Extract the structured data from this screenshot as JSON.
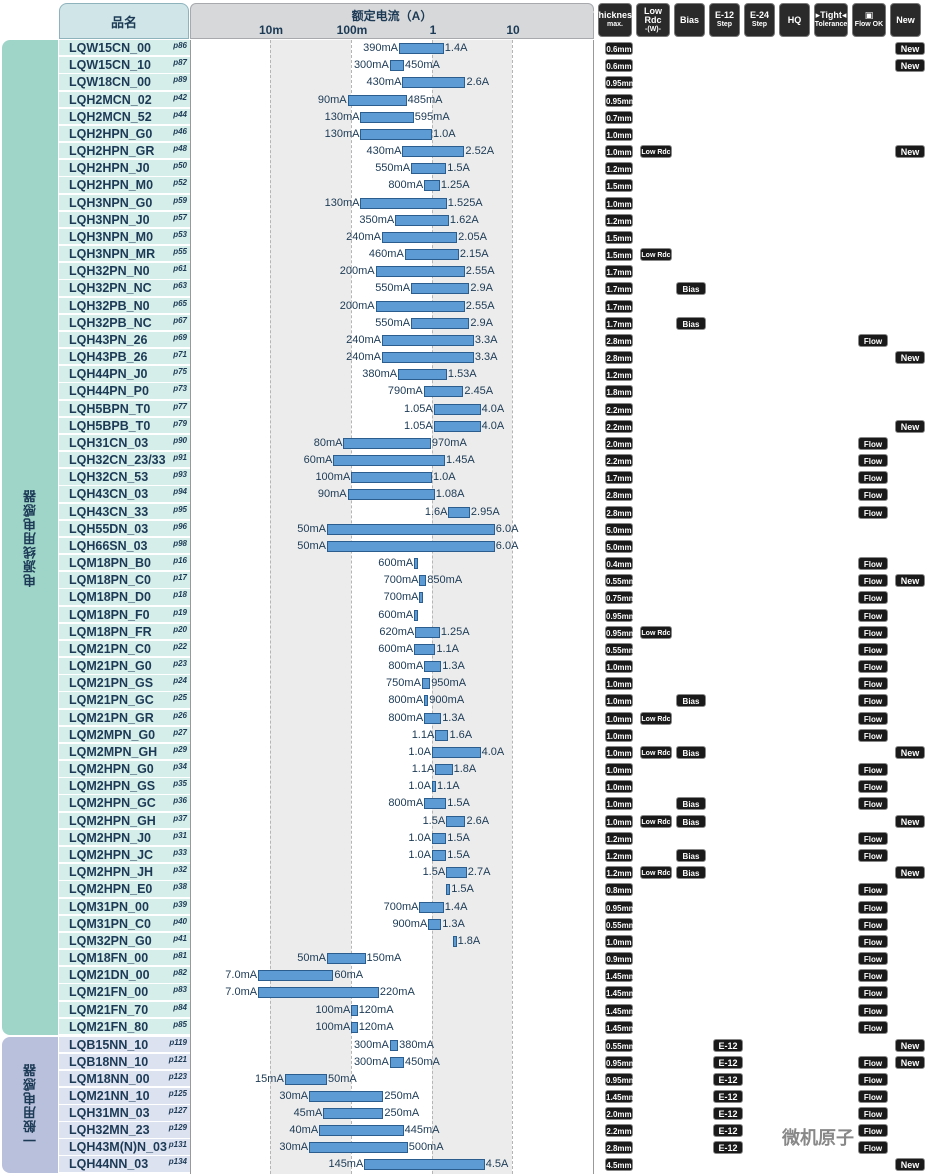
{
  "header": {
    "name_col": "品名",
    "current_title": "额定电流（A）",
    "ticks": [
      "10m",
      "100m",
      "1",
      "10"
    ],
    "icons": [
      {
        "name": "thickness-max-icon",
        "l1": "Thickness",
        "l2": "max."
      },
      {
        "name": "low-rdc-icon",
        "l1": "Low Rdc",
        "l2": "-(W)-"
      },
      {
        "name": "bias-icon",
        "l1": "Bias",
        "l2": ""
      },
      {
        "name": "e12-step-icon",
        "l1": "E-12",
        "l2": "Step"
      },
      {
        "name": "e24-step-icon",
        "l1": "E-24",
        "l2": "Step"
      },
      {
        "name": "high-q-icon",
        "l1": "HQ",
        "l2": ""
      },
      {
        "name": "tight-tolerance-icon",
        "l1": "▸Tight◂",
        "l2": "Tolerance"
      },
      {
        "name": "flow-ok-icon",
        "l1": "▣",
        "l2": "Flow OK"
      },
      {
        "name": "new-icon",
        "l1": "New",
        "l2": ""
      }
    ]
  },
  "groups": [
    {
      "label": "电源线用电感器"
    },
    {
      "label": "一般用电感器"
    }
  ],
  "badges": {
    "low_rdc": "Low Rdc",
    "bias": "Bias",
    "e12": "E-12",
    "flow": "Flow",
    "new": "New"
  },
  "rows": [
    {
      "name": "LQW15CN_00",
      "page": "p86",
      "lo": 0.39,
      "hi": 1.4,
      "lo_label": "390mA",
      "hi_label": "1.4A",
      "thick": "0.6",
      "new": true
    },
    {
      "name": "LQW15CN_10",
      "page": "p87",
      "lo": 0.3,
      "hi": 0.45,
      "lo_label": "300mA",
      "hi_label": "450mA",
      "thick": "0.6",
      "new": true
    },
    {
      "name": "LQW18CN_00",
      "page": "p89",
      "lo": 0.43,
      "hi": 2.6,
      "lo_label": "430mA",
      "hi_label": "2.6A",
      "thick": "0.95"
    },
    {
      "name": "LQH2MCN_02",
      "page": "p42",
      "lo": 0.09,
      "hi": 0.485,
      "lo_label": "90mA",
      "hi_label": "485mA",
      "thick": "0.95"
    },
    {
      "name": "LQH2MCN_52",
      "page": "p44",
      "lo": 0.13,
      "hi": 0.595,
      "lo_label": "130mA",
      "hi_label": "595mA",
      "thick": "0.7"
    },
    {
      "name": "LQH2HPN_G0",
      "page": "p46",
      "lo": 0.13,
      "hi": 1.0,
      "lo_label": "130mA",
      "hi_label": "1.0A",
      "thick": "1.0"
    },
    {
      "name": "LQH2HPN_GR",
      "page": "p48",
      "lo": 0.43,
      "hi": 2.52,
      "lo_label": "430mA",
      "hi_label": "2.52A",
      "thick": "1.0",
      "lowrdc": true,
      "new": true
    },
    {
      "name": "LQH2HPN_J0",
      "page": "p50",
      "lo": 0.55,
      "hi": 1.5,
      "lo_label": "550mA",
      "hi_label": "1.5A",
      "thick": "1.2"
    },
    {
      "name": "LQH2HPN_M0",
      "page": "p52",
      "lo": 0.8,
      "hi": 1.25,
      "lo_label": "800mA",
      "hi_label": "1.25A",
      "thick": "1.5"
    },
    {
      "name": "LQH3NPN_G0",
      "page": "p59",
      "lo": 0.13,
      "hi": 1.525,
      "lo_label": "130mA",
      "hi_label": "1.525A",
      "thick": "1.0"
    },
    {
      "name": "LQH3NPN_J0",
      "page": "p57",
      "lo": 0.35,
      "hi": 1.62,
      "lo_label": "350mA",
      "hi_label": "1.62A",
      "thick": "1.2"
    },
    {
      "name": "LQH3NPN_M0",
      "page": "p53",
      "lo": 0.24,
      "hi": 2.05,
      "lo_label": "240mA",
      "hi_label": "2.05A",
      "thick": "1.5"
    },
    {
      "name": "LQH3NPN_MR",
      "page": "p55",
      "lo": 0.46,
      "hi": 2.15,
      "lo_label": "460mA",
      "hi_label": "2.15A",
      "thick": "1.5",
      "lowrdc": true
    },
    {
      "name": "LQH32PN_N0",
      "page": "p61",
      "lo": 0.2,
      "hi": 2.55,
      "lo_label": "200mA",
      "hi_label": "2.55A",
      "thick": "1.7"
    },
    {
      "name": "LQH32PN_NC",
      "page": "p63",
      "lo": 0.55,
      "hi": 2.9,
      "lo_label": "550mA",
      "hi_label": "2.9A",
      "thick": "1.7",
      "bias": true
    },
    {
      "name": "LQH32PB_N0",
      "page": "p65",
      "lo": 0.2,
      "hi": 2.55,
      "lo_label": "200mA",
      "hi_label": "2.55A",
      "thick": "1.7"
    },
    {
      "name": "LQH32PB_NC",
      "page": "p67",
      "lo": 0.55,
      "hi": 2.9,
      "lo_label": "550mA",
      "hi_label": "2.9A",
      "thick": "1.7",
      "bias": true
    },
    {
      "name": "LQH43PN_26",
      "page": "p69",
      "lo": 0.24,
      "hi": 3.3,
      "lo_label": "240mA",
      "hi_label": "3.3A",
      "thick": "2.8",
      "flow": true
    },
    {
      "name": "LQH43PB_26",
      "page": "p71",
      "lo": 0.24,
      "hi": 3.3,
      "lo_label": "240mA",
      "hi_label": "3.3A",
      "thick": "2.8",
      "new": true
    },
    {
      "name": "LQH44PN_J0",
      "page": "p75",
      "lo": 0.38,
      "hi": 1.53,
      "lo_label": "380mA",
      "hi_label": "1.53A",
      "thick": "1.2"
    },
    {
      "name": "LQH44PN_P0",
      "page": "p73",
      "lo": 0.79,
      "hi": 2.45,
      "lo_label": "790mA",
      "hi_label": "2.45A",
      "thick": "1.8"
    },
    {
      "name": "LQH5BPN_T0",
      "page": "p77",
      "lo": 1.05,
      "hi": 4.0,
      "lo_label": "1.05A",
      "hi_label": "4.0A",
      "thick": "2.2"
    },
    {
      "name": "LQH5BPB_T0",
      "page": "p79",
      "lo": 1.05,
      "hi": 4.0,
      "lo_label": "1.05A",
      "hi_label": "4.0A",
      "thick": "2.2",
      "new": true
    },
    {
      "name": "LQH31CN_03",
      "page": "p90",
      "lo": 0.08,
      "hi": 0.97,
      "lo_label": "80mA",
      "hi_label": "970mA",
      "thick": "2.0",
      "flow": true
    },
    {
      "name": "LQH32CN_23/33",
      "page": "p91",
      "lo": 0.06,
      "hi": 1.45,
      "lo_label": "60mA",
      "hi_label": "1.45A",
      "thick": "2.2",
      "flow": true
    },
    {
      "name": "LQH32CN_53",
      "page": "p93",
      "lo": 0.1,
      "hi": 1.0,
      "lo_label": "100mA",
      "hi_label": "1.0A",
      "thick": "1.7",
      "flow": true
    },
    {
      "name": "LQH43CN_03",
      "page": "p94",
      "lo": 0.09,
      "hi": 1.08,
      "lo_label": "90mA",
      "hi_label": "1.08A",
      "thick": "2.8",
      "flow": true
    },
    {
      "name": "LQH43CN_33",
      "page": "p95",
      "lo": 1.6,
      "hi": 2.95,
      "lo_label": "1.6A",
      "hi_label": "2.95A",
      "thick": "2.8",
      "flow": true
    },
    {
      "name": "LQH55DN_03",
      "page": "p96",
      "lo": 0.05,
      "hi": 6.0,
      "lo_label": "50mA",
      "hi_label": "6.0A",
      "thick": "5.0"
    },
    {
      "name": "LQH66SN_03",
      "page": "p98",
      "lo": 0.05,
      "hi": 6.0,
      "lo_label": "50mA",
      "hi_label": "6.0A",
      "thick": "5.0"
    },
    {
      "name": "LQM18PN_B0",
      "page": "p16",
      "lo": 0.6,
      "hi": 0.6,
      "lo_label": "600mA",
      "hi_label": "",
      "thick": "0.4",
      "flow": true
    },
    {
      "name": "LQM18PN_C0",
      "page": "p17",
      "lo": 0.7,
      "hi": 0.85,
      "lo_label": "700mA",
      "hi_label": "850mA",
      "thick": "0.55",
      "flow": true,
      "new": true
    },
    {
      "name": "LQM18PN_D0",
      "page": "p18",
      "lo": 0.7,
      "hi": 0.7,
      "lo_label": "700mA",
      "hi_label": "",
      "thick": "0.75",
      "flow": true
    },
    {
      "name": "LQM18PN_F0",
      "page": "p19",
      "lo": 0.6,
      "hi": 0.6,
      "lo_label": "600mA",
      "hi_label": "",
      "thick": "0.95",
      "flow": true
    },
    {
      "name": "LQM18PN_FR",
      "page": "p20",
      "lo": 0.62,
      "hi": 1.25,
      "lo_label": "620mA",
      "hi_label": "1.25A",
      "thick": "0.95",
      "lowrdc": true,
      "flow": true
    },
    {
      "name": "LQM21PN_C0",
      "page": "p22",
      "lo": 0.6,
      "hi": 1.1,
      "lo_label": "600mA",
      "hi_label": "1.1A",
      "thick": "0.55",
      "flow": true
    },
    {
      "name": "LQM21PN_G0",
      "page": "p23",
      "lo": 0.8,
      "hi": 1.3,
      "lo_label": "800mA",
      "hi_label": "1.3A",
      "thick": "1.0",
      "flow": true
    },
    {
      "name": "LQM21PN_GS",
      "page": "p24",
      "lo": 0.75,
      "hi": 0.95,
      "lo_label": "750mA",
      "hi_label": "950mA",
      "thick": "1.0",
      "flow": true
    },
    {
      "name": "LQM21PN_GC",
      "page": "p25",
      "lo": 0.8,
      "hi": 0.9,
      "lo_label": "800mA",
      "hi_label": "900mA",
      "thick": "1.0",
      "bias": true,
      "flow": true
    },
    {
      "name": "LQM21PN_GR",
      "page": "p26",
      "lo": 0.8,
      "hi": 1.3,
      "lo_label": "800mA",
      "hi_label": "1.3A",
      "thick": "1.0",
      "lowrdc": true,
      "flow": true
    },
    {
      "name": "LQM2MPN_G0",
      "page": "p27",
      "lo": 1.1,
      "hi": 1.6,
      "lo_label": "1.1A",
      "hi_label": "1.6A",
      "thick": "1.0",
      "flow": true
    },
    {
      "name": "LQM2MPN_GH",
      "page": "p29",
      "lo": 1.0,
      "hi": 4.0,
      "lo_label": "1.0A",
      "hi_label": "4.0A",
      "thick": "1.0",
      "lowrdc": true,
      "bias": true,
      "new": true
    },
    {
      "name": "LQM2HPN_G0",
      "page": "p34",
      "lo": 1.1,
      "hi": 1.8,
      "lo_label": "1.1A",
      "hi_label": "1.8A",
      "thick": "1.0",
      "flow": true
    },
    {
      "name": "LQM2HPN_GS",
      "page": "p35",
      "lo": 1.0,
      "hi": 1.1,
      "lo_label": "1.0A",
      "hi_label": "1.1A",
      "thick": "1.0",
      "flow": true
    },
    {
      "name": "LQM2HPN_GC",
      "page": "p36",
      "lo": 0.8,
      "hi": 1.5,
      "lo_label": "800mA",
      "hi_label": "1.5A",
      "thick": "1.0",
      "bias": true,
      "flow": true
    },
    {
      "name": "LQM2HPN_GH",
      "page": "p37",
      "lo": 1.5,
      "hi": 2.6,
      "lo_label": "1.5A",
      "hi_label": "2.6A",
      "thick": "1.0",
      "lowrdc": true,
      "bias": true,
      "new": true
    },
    {
      "name": "LQM2HPN_J0",
      "page": "p31",
      "lo": 1.0,
      "hi": 1.5,
      "lo_label": "1.0A",
      "hi_label": "1.5A",
      "thick": "1.2",
      "flow": true
    },
    {
      "name": "LQM2HPN_JC",
      "page": "p33",
      "lo": 1.0,
      "hi": 1.5,
      "lo_label": "1.0A",
      "hi_label": "1.5A",
      "thick": "1.2",
      "bias": true,
      "flow": true
    },
    {
      "name": "LQM2HPN_JH",
      "page": "p32",
      "lo": 1.5,
      "hi": 2.7,
      "lo_label": "1.5A",
      "hi_label": "2.7A",
      "thick": "1.2",
      "lowrdc": true,
      "bias": true,
      "new": true
    },
    {
      "name": "LQM2HPN_E0",
      "page": "p38",
      "lo": 1.5,
      "hi": 1.5,
      "lo_label": "",
      "hi_label": "1.5A",
      "thick": "0.8",
      "flow": true
    },
    {
      "name": "LQM31PN_00",
      "page": "p39",
      "lo": 0.7,
      "hi": 1.4,
      "lo_label": "700mA",
      "hi_label": "1.4A",
      "thick": "0.95",
      "flow": true
    },
    {
      "name": "LQM31PN_C0",
      "page": "p40",
      "lo": 0.9,
      "hi": 1.3,
      "lo_label": "900mA",
      "hi_label": "1.3A",
      "thick": "0.55",
      "flow": true
    },
    {
      "name": "LQM32PN_G0",
      "page": "p41",
      "lo": 1.8,
      "hi": 1.8,
      "lo_label": "",
      "hi_label": "1.8A",
      "thick": "1.0",
      "flow": true
    },
    {
      "name": "LQM18FN_00",
      "page": "p81",
      "lo": 0.05,
      "hi": 0.15,
      "lo_label": "50mA",
      "hi_label": "150mA",
      "thick": "0.9",
      "flow": true
    },
    {
      "name": "LQM21DN_00",
      "page": "p82",
      "lo": 0.007,
      "hi": 0.06,
      "lo_label": "7.0mA",
      "hi_label": "60mA",
      "thick": "1.45",
      "flow": true
    },
    {
      "name": "LQM21FN_00",
      "page": "p83",
      "lo": 0.007,
      "hi": 0.22,
      "lo_label": "7.0mA",
      "hi_label": "220mA",
      "thick": "1.45",
      "flow": true
    },
    {
      "name": "LQM21FN_70",
      "page": "p84",
      "lo": 0.1,
      "hi": 0.12,
      "lo_label": "100mA",
      "hi_label": "120mA",
      "thick": "1.45",
      "flow": true
    },
    {
      "name": "LQM21FN_80",
      "page": "p85",
      "lo": 0.1,
      "hi": 0.12,
      "lo_label": "100mA",
      "hi_label": "120mA",
      "thick": "1.45",
      "flow": true
    },
    {
      "name": "LQB15NN_10",
      "page": "p119",
      "lo": 0.3,
      "hi": 0.38,
      "lo_label": "300mA",
      "hi_label": "380mA",
      "thick": "0.55",
      "e12": true,
      "new": true,
      "g2": true
    },
    {
      "name": "LQB18NN_10",
      "page": "p121",
      "lo": 0.3,
      "hi": 0.45,
      "lo_label": "300mA",
      "hi_label": "450mA",
      "thick": "0.95",
      "e12": true,
      "flow": true,
      "new": true,
      "g2": true
    },
    {
      "name": "LQM18NN_00",
      "page": "p123",
      "lo": 0.015,
      "hi": 0.05,
      "lo_label": "15mA",
      "hi_label": "50mA",
      "thick": "0.95",
      "e12": true,
      "flow": true,
      "g2": true
    },
    {
      "name": "LQM21NN_10",
      "page": "p125",
      "lo": 0.03,
      "hi": 0.25,
      "lo_label": "30mA",
      "hi_label": "250mA",
      "thick": "1.45",
      "e12": true,
      "flow": true,
      "g2": true
    },
    {
      "name": "LQH31MN_03",
      "page": "p127",
      "lo": 0.045,
      "hi": 0.25,
      "lo_label": "45mA",
      "hi_label": "250mA",
      "thick": "2.0",
      "e12": true,
      "flow": true,
      "g2": true
    },
    {
      "name": "LQH32MN_23",
      "page": "p129",
      "lo": 0.04,
      "hi": 0.445,
      "lo_label": "40mA",
      "hi_label": "445mA",
      "thick": "2.2",
      "e12": true,
      "flow": true,
      "g2": true
    },
    {
      "name": "LQH43M(N)N_03",
      "page": "p131",
      "lo": 0.03,
      "hi": 0.5,
      "lo_label": "30mA",
      "hi_label": "500mA",
      "thick": "2.8",
      "e12": true,
      "flow": true,
      "g2": true
    },
    {
      "name": "LQH44NN_03",
      "page": "p134",
      "lo": 0.145,
      "hi": 4.5,
      "lo_label": "145mA",
      "hi_label": "4.5A",
      "thick": "4.5",
      "new": true,
      "g2": true
    }
  ],
  "thick_unit": "mm",
  "watermark": "微机原子"
}
